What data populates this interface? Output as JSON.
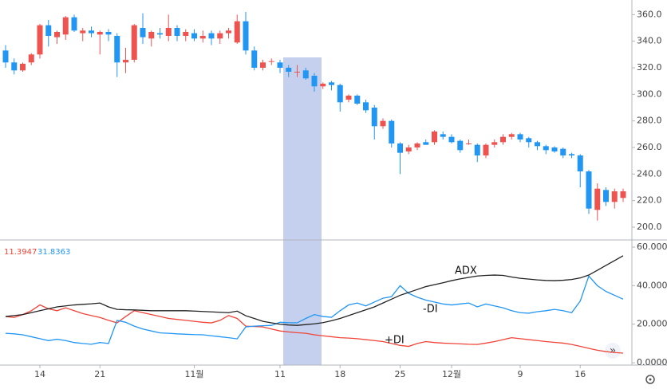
{
  "chart_data": [
    {
      "type": "candlestick",
      "categories": [
        null,
        null,
        null,
        null,
        "14",
        null,
        null,
        null,
        null,
        null,
        null,
        "21",
        null,
        null,
        null,
        null,
        null,
        null,
        null,
        null,
        null,
        null,
        "11월",
        null,
        null,
        null,
        null,
        null,
        null,
        null,
        null,
        null,
        "11",
        null,
        null,
        null,
        null,
        null,
        null,
        "18",
        null,
        null,
        null,
        null,
        null,
        null,
        "25",
        null,
        null,
        null,
        null,
        null,
        "12월",
        null,
        null,
        null,
        null,
        null,
        null,
        null,
        "9",
        null,
        null,
        null,
        null,
        null,
        null,
        "16",
        null,
        null,
        null,
        null,
        null
      ],
      "open": [
        333,
        324,
        318,
        324,
        330,
        352,
        343,
        345,
        358,
        346,
        348,
        345,
        347,
        344,
        324,
        326,
        350,
        342,
        346,
        344,
        350,
        344,
        346,
        342,
        346,
        342,
        346,
        339,
        355,
        333,
        320,
        325,
        324,
        320,
        317,
        318,
        314,
        306,
        309,
        307,
        296,
        299,
        294,
        290,
        276,
        280,
        263,
        257,
        260,
        264,
        264,
        270,
        268,
        265,
        263,
        262,
        254,
        262,
        264,
        268,
        270,
        267,
        264,
        261,
        260,
        259,
        255,
        254,
        242,
        213,
        228,
        219,
        222
      ],
      "high": [
        337,
        327,
        324,
        331,
        353,
        356,
        348,
        359,
        360,
        350,
        351,
        348,
        349,
        346,
        335,
        353,
        361,
        348,
        350,
        360,
        352,
        349,
        349,
        348,
        348,
        348,
        350,
        360,
        362,
        336,
        326,
        327,
        326,
        322,
        322,
        320,
        316,
        309,
        310,
        308,
        300,
        300,
        296,
        292,
        282,
        281,
        264,
        262,
        264,
        266,
        273,
        272,
        270,
        266,
        266,
        263,
        263,
        266,
        270,
        271,
        271,
        268,
        265,
        262,
        261,
        260,
        256,
        255,
        243,
        233,
        230,
        229,
        229
      ],
      "low": [
        320,
        315,
        317,
        322,
        327,
        336,
        338,
        341,
        347,
        340,
        343,
        330,
        340,
        313,
        316,
        324,
        338,
        336,
        342,
        340,
        340,
        340,
        340,
        339,
        337,
        338,
        342,
        338,
        330,
        318,
        318,
        322,
        316,
        313,
        313,
        311,
        302,
        304,
        303,
        287,
        294,
        292,
        286,
        266,
        274,
        260,
        240,
        255,
        258,
        262,
        262,
        266,
        263,
        256,
        262,
        249,
        252,
        260,
        262,
        266,
        264,
        260,
        258,
        255,
        256,
        252,
        252,
        230,
        210,
        205,
        216,
        214,
        219
      ],
      "close": [
        324,
        318,
        323,
        330,
        352,
        344,
        347,
        358,
        348,
        348,
        346,
        347,
        345,
        324,
        326,
        352,
        343,
        347,
        345,
        350,
        344,
        347,
        342,
        344,
        342,
        346,
        348,
        355,
        333,
        320,
        324,
        325,
        320,
        317,
        317,
        312,
        306,
        308,
        307,
        294,
        299,
        293,
        288,
        276,
        280,
        263,
        256,
        260,
        263,
        262,
        272,
        268,
        264,
        258,
        263,
        254,
        262,
        264,
        268,
        270,
        266,
        264,
        261,
        258,
        257,
        254,
        254,
        242,
        214,
        229,
        219,
        227,
        227
      ],
      "up_color": "#ef5350",
      "down_color": "#2196f3",
      "ylim": [
        191,
        371
      ],
      "yticks": [
        {
          "value": 200,
          "label": "200.0"
        },
        {
          "value": 220,
          "label": "220.0"
        },
        {
          "value": 240,
          "label": "240.0"
        },
        {
          "value": 260,
          "label": "260.0"
        },
        {
          "value": 280,
          "label": "280.0"
        },
        {
          "value": 300,
          "label": "300.0"
        },
        {
          "value": 320,
          "label": "320.0"
        },
        {
          "value": 340,
          "label": "340.0"
        },
        {
          "value": 360,
          "label": "360.0"
        }
      ],
      "grid": false
    },
    {
      "type": "line",
      "readout": [
        11.3947,
        31.8363
      ],
      "series": [
        {
          "name": "+DI",
          "color": "#f04438",
          "values": [
            24,
            23.5,
            25,
            27,
            30,
            28,
            27,
            28.5,
            27,
            25.5,
            24.5,
            23.5,
            22,
            20.7,
            24,
            27,
            26,
            25,
            24,
            23,
            22.5,
            22,
            21.5,
            21,
            20.7,
            22,
            24.5,
            23,
            19,
            18.8,
            18.6,
            17.5,
            16.5,
            16,
            15.6,
            15.3,
            14.5,
            14,
            13.5,
            13,
            12.8,
            12.5,
            12,
            11.5,
            11,
            10,
            9,
            8.5,
            10,
            11,
            10.5,
            10.2,
            10,
            9.8,
            9.6,
            9.5,
            10.2,
            11,
            12,
            13,
            12.5,
            12,
            11.5,
            11,
            10.6,
            10.2,
            9.5,
            8.5,
            7.5,
            6.5,
            5.8,
            5.3,
            5
          ]
        },
        {
          "name": "-DI",
          "color": "#2196f3",
          "values": [
            15.3,
            15,
            14.5,
            13.5,
            12.5,
            11.5,
            12.2,
            11.5,
            10.5,
            10,
            9.6,
            10.5,
            10,
            22,
            21,
            19,
            17.5,
            16.5,
            15.5,
            15.3,
            15,
            14.8,
            14.6,
            14.5,
            14,
            13.5,
            13,
            12.4,
            18.6,
            19,
            19.2,
            19.4,
            21,
            20.8,
            20.7,
            23,
            25,
            24,
            23.6,
            27,
            30,
            31,
            29.5,
            31.5,
            33.5,
            34.3,
            40,
            36,
            34,
            32.5,
            31.5,
            30.5,
            30,
            30.5,
            31,
            29,
            30.5,
            29.5,
            28.5,
            27,
            26,
            25.7,
            26.5,
            27,
            27.7,
            27,
            26,
            32,
            45,
            40,
            37,
            35,
            33
          ]
        },
        {
          "name": "ADX",
          "color": "#222222",
          "values": [
            24,
            24.5,
            25,
            26,
            27,
            28,
            29,
            29.5,
            30,
            30.3,
            30.6,
            31,
            29,
            27.7,
            27.5,
            27.4,
            27.2,
            27,
            27,
            27,
            27,
            27,
            26.8,
            26.6,
            26.4,
            26.2,
            26,
            26.8,
            24.4,
            23,
            21.5,
            20.7,
            20,
            19.6,
            19.4,
            19.8,
            20.2,
            20.8,
            21.8,
            23,
            24.5,
            26,
            27.5,
            29,
            31,
            33,
            35,
            36.5,
            38,
            39.5,
            40.5,
            41.5,
            42.6,
            43.5,
            44.3,
            45,
            45.3,
            45.5,
            45.3,
            44.5,
            43.8,
            43.4,
            43,
            42.7,
            42.6,
            42.8,
            43.2,
            44,
            45.5,
            48,
            50.5,
            53,
            55.5
          ]
        }
      ],
      "ylim": [
        -1.2,
        63.3
      ],
      "yticks": [
        {
          "value": 0,
          "label": "0.0000"
        },
        {
          "value": 20,
          "label": "20.0000"
        },
        {
          "value": 40,
          "label": "40.0000"
        },
        {
          "value": 60,
          "label": "60.0000"
        }
      ],
      "grid": false
    }
  ]
}
